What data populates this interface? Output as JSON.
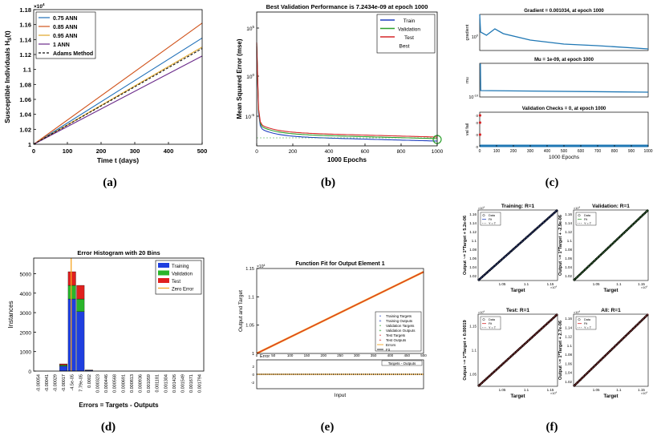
{
  "panel_labels": [
    "(a)",
    "(b)",
    "(c)",
    "(d)",
    "(e)",
    "(f)"
  ],
  "chart_data": [
    {
      "id": "a",
      "type": "line",
      "title": "",
      "xlabel": "Time t (days)",
      "ylabel": "Susceptible Individuals H",
      "ylabel_sub": "S",
      "ylabel_tail": "(t)",
      "exponent": "×10",
      "exponent_power": "4",
      "xlim": [
        0,
        500
      ],
      "ylim": [
        1,
        1.18
      ],
      "xticks": [
        "0",
        "100",
        "200",
        "300",
        "400",
        "500"
      ],
      "yticks": [
        "1",
        "1.02",
        "1.04",
        "1.06",
        "1.08",
        "1.1",
        "1.12",
        "1.14",
        "1.16",
        "1.18"
      ],
      "series": [
        {
          "name": "0.75 ANN",
          "color": "#1f6fb8",
          "start": 1.0,
          "end": 1.142
        },
        {
          "name": "0.85 ANN",
          "color": "#d0521a",
          "start": 1.0,
          "end": 1.162
        },
        {
          "name": "0.95 ANN",
          "color": "#e0a526",
          "start": 1.0,
          "end": 1.13
        },
        {
          "name": "1 ANN",
          "color": "#6a2a8a",
          "start": 1.0,
          "end": 1.118
        },
        {
          "name": "Adams Method",
          "color": "#111111",
          "dashed": true,
          "start": 1.0,
          "end": 1.128
        }
      ]
    },
    {
      "id": "b",
      "type": "line",
      "title": "Best Validation Performance is 7.2434e-09 at epoch 1000",
      "xlabel": "1000 Epochs",
      "ylabel": "Mean Squared Error  (mse)",
      "xticks": [
        "0",
        "200",
        "400",
        "600",
        "800",
        "1000"
      ],
      "yticks": [
        "10",
        "10",
        "10"
      ],
      "ytick_powers": [
        "5",
        "0",
        "-5"
      ],
      "xlim": [
        0,
        1000
      ],
      "legend": [
        "Train",
        "Validation",
        "Test",
        "Best"
      ],
      "colors": {
        "train": "#1f3fbf",
        "validation": "#2ca02c",
        "test": "#d62728",
        "best": "#2ca02c"
      }
    },
    {
      "id": "c",
      "type": "line",
      "subplots": [
        {
          "title": "Gradient = 0.001034, at epoch 1000",
          "ylabel": "gradient",
          "yticks": [
            "10"
          ],
          "ytick_powers": [
            "0"
          ]
        },
        {
          "title": "Mu = 1e-09, at epoch 1000",
          "ylabel": "mu",
          "yticks": [
            "10"
          ],
          "ytick_powers": [
            "-10"
          ]
        },
        {
          "title": "Validation Checks = 0, at epoch 1000",
          "ylabel": "val fail",
          "yticks": [
            "0",
            "0",
            "0",
            "0"
          ]
        }
      ],
      "xlabel": "1000 Epochs",
      "xticks": [
        "0",
        "100",
        "200",
        "300",
        "400",
        "500",
        "600",
        "700",
        "800",
        "900",
        "1000"
      ],
      "color": "#1f77b4"
    },
    {
      "id": "d",
      "type": "bar",
      "title": "Error Histogram with 20 Bins",
      "xlabel": "Errors = Targets - Outputs",
      "ylabel": "Instances",
      "yticks": [
        "0",
        "1000",
        "2000",
        "3000",
        "4000",
        "5000"
      ],
      "ylim": [
        0,
        5800
      ],
      "categories": [
        "-0.00054",
        "-0.00041",
        "-0.00029",
        "-0.00017",
        "-4.5e-05",
        "7.79e-05",
        "0.0002",
        "0.000323",
        "0.000446",
        "0.000568",
        "0.000691",
        "0.000813",
        "0.000936",
        "0.001059",
        "0.001181",
        "0.001304",
        "0.001426",
        "0.001549",
        "0.001671",
        "0.001794"
      ],
      "series": [
        {
          "name": "Training",
          "color": "#1f3fdf",
          "values": [
            0,
            0,
            0,
            250,
            3700,
            3050,
            40,
            0,
            0,
            0,
            0,
            0,
            0,
            0,
            0,
            0,
            0,
            0,
            0,
            0
          ]
        },
        {
          "name": "Validation",
          "color": "#2ab52a",
          "values": [
            0,
            0,
            0,
            60,
            700,
            650,
            8,
            0,
            0,
            0,
            0,
            0,
            0,
            0,
            0,
            0,
            0,
            0,
            0,
            0
          ]
        },
        {
          "name": "Test",
          "color": "#e0201e",
          "values": [
            0,
            0,
            0,
            60,
            700,
            700,
            8,
            0,
            0,
            0,
            0,
            0,
            0,
            0,
            0,
            0,
            0,
            0,
            0,
            0
          ]
        }
      ],
      "legend": [
        "Training",
        "Validation",
        "Test",
        "Zero Error"
      ],
      "zero_error_color": "#f5a623",
      "zero_error_index": 4
    },
    {
      "id": "e",
      "type": "line",
      "title": "Function Fit for Output Element 1",
      "ylabel": "Output and Target",
      "xlabel": "Input",
      "exponent": "×10",
      "exponent_power": "4",
      "yticks": [
        "1",
        "1.05",
        "1.1",
        "1.15"
      ],
      "ylim": [
        1,
        1.15
      ],
      "xticks": [
        "0",
        "50",
        "100",
        "150",
        "200",
        "250",
        "300",
        "350",
        "400",
        "450",
        "500"
      ],
      "x_exponent": "×10",
      "x_exponent_power": "-3",
      "xlim": [
        0,
        500
      ],
      "error_ylabel": "Error",
      "error_yticks": [
        "2",
        "0",
        "-2"
      ],
      "error_legend": "Targets - Outputs",
      "legend": [
        "Training Targets",
        "Training Outputs",
        "Validation Targets",
        "Validation Outputs",
        "Test Targets",
        "Test Outputs",
        "Errors",
        "Fit"
      ]
    },
    {
      "id": "f",
      "type": "scatter",
      "subplots": [
        {
          "title": "Training: R=1",
          "ylabel": "Output ~= 1*Target + 5.2e-06",
          "fit_color": "#1f3fbf"
        },
        {
          "title": "Validation: R=1",
          "ylabel": "Output ~= 1*Target + -2.9e-06",
          "fit_color": "#2ca02c"
        },
        {
          "title": "Test: R=1",
          "ylabel": "Output ~= 1*Target + 0.00019",
          "fit_color": "#d62728"
        },
        {
          "title": "All: R=1",
          "ylabel": "Output ~= 1*Target + 2.7e-06",
          "fit_color": "#d62728"
        }
      ],
      "xlabel": "Target",
      "xticks": [
        "1.05",
        "1.1",
        "1.15"
      ],
      "yticks": [
        "1.02",
        "1.04",
        "1.06",
        "1.08",
        "1.1",
        "1.12",
        "1.14",
        "1.16"
      ],
      "yticks_test": [
        "1.05",
        "1.1",
        "1.15"
      ],
      "exponent": "×10",
      "exponent_power": "4",
      "legend": [
        "Data",
        "Fit",
        "Y = T"
      ]
    }
  ]
}
